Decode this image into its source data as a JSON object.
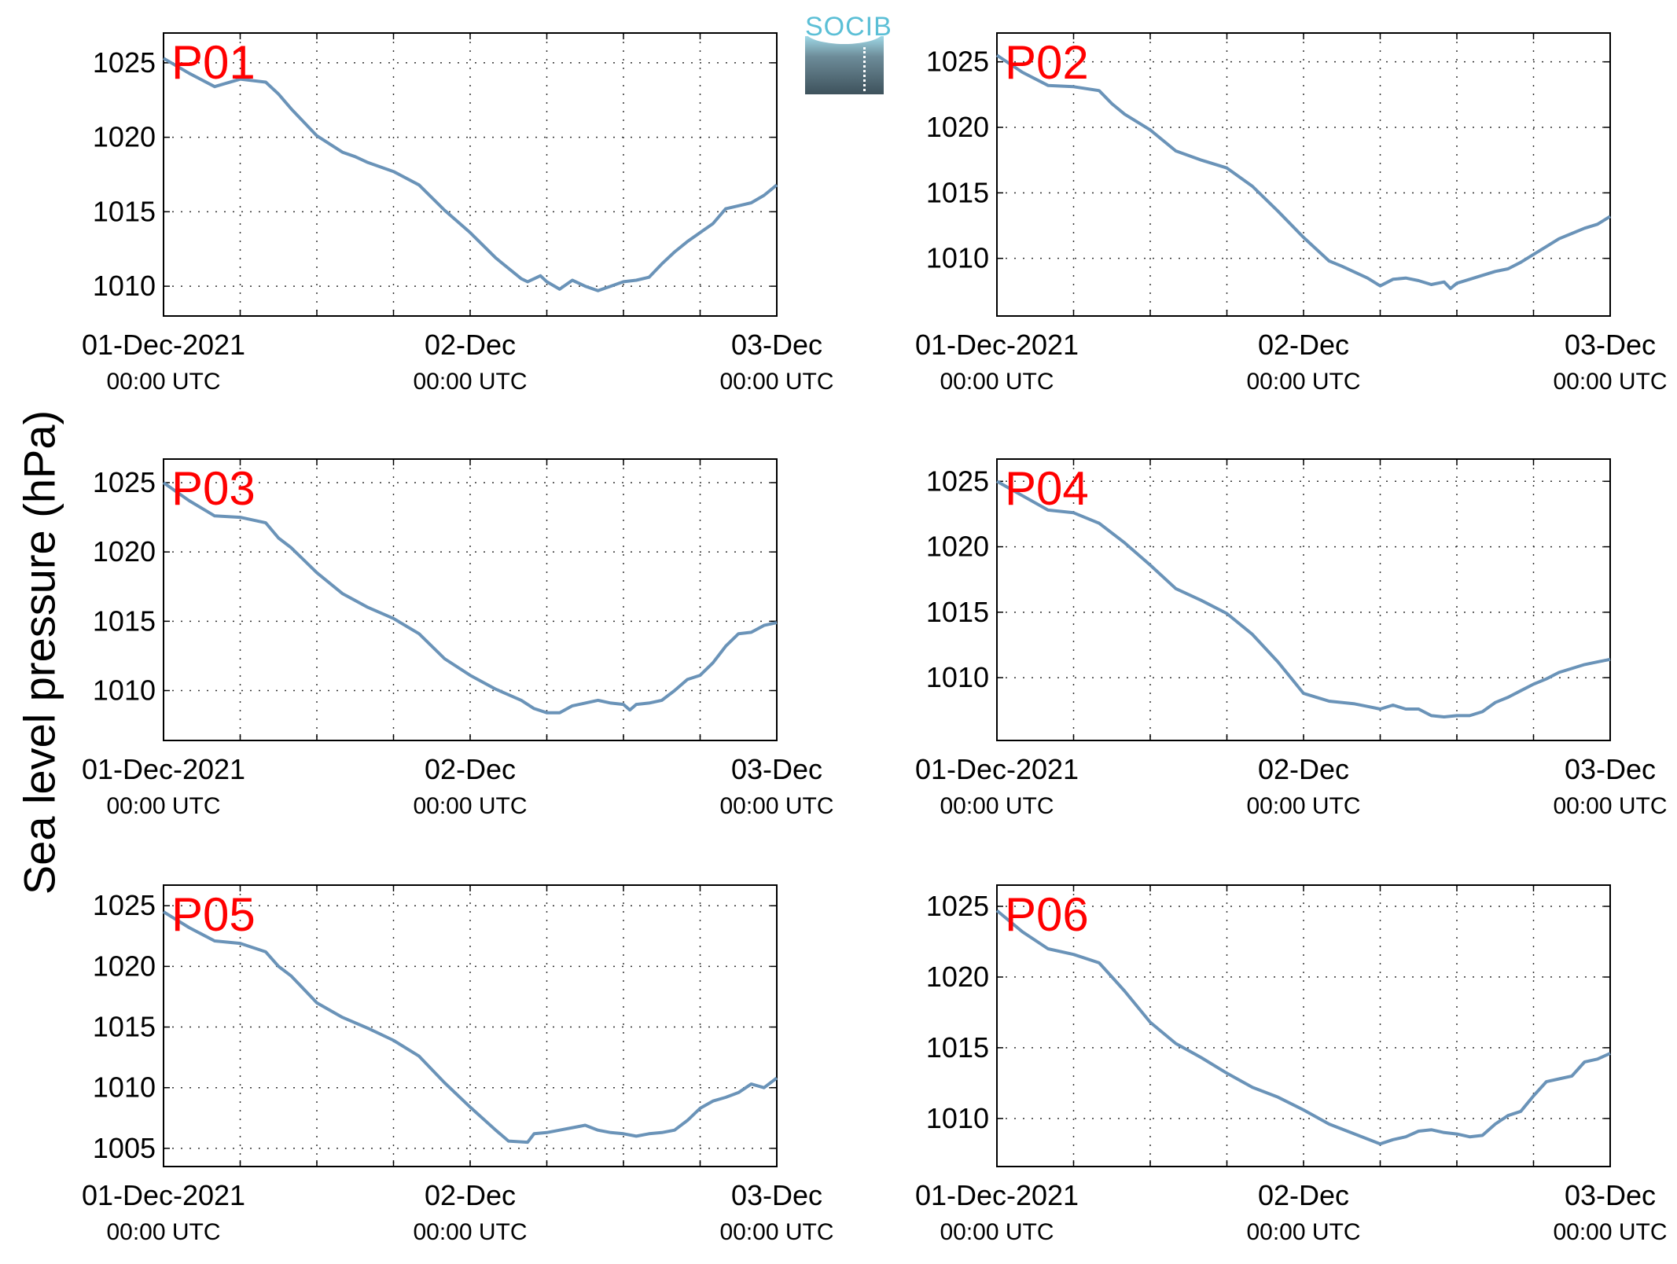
{
  "figure": {
    "ylabel": "Sea level pressure (hPa)",
    "logo_text": "SOCIB",
    "line_color": "#6a93b8",
    "label_color": "#ff0000"
  },
  "chart_data": [
    {
      "type": "line",
      "title": "",
      "label": "P01",
      "ylabel": "Sea level pressure (hPa)",
      "x_range_hours": [
        0,
        48
      ],
      "ylim": [
        1008,
        1027
      ],
      "yticks": [
        1010,
        1015,
        1020,
        1025
      ],
      "xticks": [
        {
          "hour": 0,
          "label": "01-Dec-2021",
          "sublabel": "00:00 UTC"
        },
        {
          "hour": 24,
          "label": "02-Dec",
          "sublabel": "00:00 UTC"
        },
        {
          "hour": 48,
          "label": "03-Dec",
          "sublabel": "00:00 UTC"
        }
      ],
      "grid": true,
      "series": [
        {
          "x": [
            0,
            2,
            4,
            6,
            8,
            9,
            10,
            12,
            14,
            15,
            16,
            18,
            20,
            22,
            24,
            26,
            28,
            28.5,
            29.5,
            30,
            31,
            32,
            33,
            34,
            35,
            36,
            37,
            38,
            39,
            40,
            41,
            42,
            43,
            44,
            45,
            46,
            47,
            48
          ],
          "y": [
            1025.3,
            1024.3,
            1023.4,
            1023.9,
            1023.7,
            1022.9,
            1021.9,
            1020.1,
            1019.0,
            1018.7,
            1018.3,
            1017.7,
            1016.8,
            1015.1,
            1013.6,
            1011.9,
            1010.5,
            1010.3,
            1010.7,
            1010.3,
            1009.8,
            1010.4,
            1010.0,
            1009.7,
            1010.0,
            1010.3,
            1010.4,
            1010.6,
            1011.5,
            1012.3,
            1013.0,
            1013.6,
            1014.2,
            1015.2,
            1015.4,
            1015.6,
            1016.1,
            1016.8
          ]
        }
      ]
    },
    {
      "type": "line",
      "title": "",
      "label": "P02",
      "ylabel": "Sea level pressure (hPa)",
      "x_range_hours": [
        0,
        48
      ],
      "ylim": [
        1005.6,
        1027.2
      ],
      "yticks": [
        1010,
        1015,
        1020,
        1025
      ],
      "xticks": [
        {
          "hour": 0,
          "label": "01-Dec-2021",
          "sublabel": "00:00 UTC"
        },
        {
          "hour": 24,
          "label": "02-Dec",
          "sublabel": "00:00 UTC"
        },
        {
          "hour": 48,
          "label": "03-Dec",
          "sublabel": "00:00 UTC"
        }
      ],
      "grid": true,
      "series": [
        {
          "x": [
            0,
            2,
            4,
            6,
            8,
            9,
            10,
            12,
            14,
            16,
            18,
            20,
            22,
            24,
            26,
            27,
            29,
            30,
            31,
            32,
            33,
            34,
            35,
            35.5,
            36,
            37,
            38,
            39,
            40,
            41,
            42,
            43,
            44,
            45,
            46,
            47,
            48
          ],
          "y": [
            1025.5,
            1024.2,
            1023.2,
            1023.1,
            1022.8,
            1021.8,
            1021.0,
            1019.8,
            1018.2,
            1017.5,
            1016.9,
            1015.5,
            1013.6,
            1011.6,
            1009.8,
            1009.4,
            1008.5,
            1007.9,
            1008.4,
            1008.5,
            1008.3,
            1008.0,
            1008.2,
            1007.7,
            1008.1,
            1008.4,
            1008.7,
            1009.0,
            1009.2,
            1009.7,
            1010.3,
            1010.9,
            1011.5,
            1011.9,
            1012.3,
            1012.6,
            1013.2
          ]
        }
      ]
    },
    {
      "type": "line",
      "title": "",
      "label": "P03",
      "ylabel": "Sea level pressure (hPa)",
      "x_range_hours": [
        0,
        48
      ],
      "ylim": [
        1006.4,
        1026.7
      ],
      "yticks": [
        1010,
        1015,
        1020,
        1025
      ],
      "xticks": [
        {
          "hour": 0,
          "label": "01-Dec-2021",
          "sublabel": "00:00 UTC"
        },
        {
          "hour": 24,
          "label": "02-Dec",
          "sublabel": "00:00 UTC"
        },
        {
          "hour": 48,
          "label": "03-Dec",
          "sublabel": "00:00 UTC"
        }
      ],
      "grid": true,
      "series": [
        {
          "x": [
            0,
            2,
            4,
            6,
            8,
            9,
            10,
            12,
            14,
            16,
            18,
            20,
            22,
            24,
            26,
            28,
            29,
            30,
            31,
            32,
            33,
            34,
            35,
            36,
            36.5,
            37,
            38,
            39,
            40,
            41,
            42,
            43,
            44,
            45,
            46,
            47,
            48
          ],
          "y": [
            1025.0,
            1023.7,
            1022.6,
            1022.5,
            1022.1,
            1021.0,
            1020.3,
            1018.5,
            1017.0,
            1016.0,
            1015.2,
            1014.1,
            1012.3,
            1011.1,
            1010.1,
            1009.3,
            1008.7,
            1008.4,
            1008.4,
            1008.9,
            1009.1,
            1009.3,
            1009.1,
            1009.0,
            1008.6,
            1009.0,
            1009.1,
            1009.3,
            1010.0,
            1010.8,
            1011.1,
            1012.0,
            1013.2,
            1014.1,
            1014.2,
            1014.7,
            1014.9
          ]
        }
      ]
    },
    {
      "type": "line",
      "title": "",
      "label": "P04",
      "ylabel": "Sea level pressure (hPa)",
      "x_range_hours": [
        0,
        48
      ],
      "ylim": [
        1005.2,
        1026.7
      ],
      "yticks": [
        1010,
        1015,
        1020,
        1025
      ],
      "xticks": [
        {
          "hour": 0,
          "label": "01-Dec-2021",
          "sublabel": "00:00 UTC"
        },
        {
          "hour": 24,
          "label": "02-Dec",
          "sublabel": "00:00 UTC"
        },
        {
          "hour": 48,
          "label": "03-Dec",
          "sublabel": "00:00 UTC"
        }
      ],
      "grid": true,
      "series": [
        {
          "x": [
            0,
            2,
            4,
            6,
            8,
            10,
            12,
            14,
            16,
            18,
            20,
            22,
            24,
            26,
            28,
            29,
            30,
            31,
            32,
            33,
            34,
            35,
            36,
            37,
            38,
            39,
            40,
            41,
            42,
            43,
            44,
            45,
            46,
            47,
            48
          ],
          "y": [
            1025.0,
            1023.9,
            1022.8,
            1022.6,
            1021.8,
            1020.3,
            1018.6,
            1016.8,
            1015.9,
            1014.9,
            1013.3,
            1011.2,
            1008.8,
            1008.2,
            1008.0,
            1007.8,
            1007.6,
            1007.9,
            1007.6,
            1007.6,
            1007.1,
            1007.0,
            1007.1,
            1007.1,
            1007.4,
            1008.1,
            1008.5,
            1009.0,
            1009.5,
            1009.9,
            1010.4,
            1010.7,
            1011.0,
            1011.2,
            1011.4
          ]
        }
      ]
    },
    {
      "type": "line",
      "title": "",
      "label": "P05",
      "ylabel": "Sea level pressure (hPa)",
      "x_range_hours": [
        0,
        48
      ],
      "ylim": [
        1003.5,
        1026.7
      ],
      "yticks": [
        1005,
        1010,
        1015,
        1020,
        1025
      ],
      "xticks": [
        {
          "hour": 0,
          "label": "01-Dec-2021",
          "sublabel": "00:00 UTC"
        },
        {
          "hour": 24,
          "label": "02-Dec",
          "sublabel": "00:00 UTC"
        },
        {
          "hour": 48,
          "label": "03-Dec",
          "sublabel": "00:00 UTC"
        }
      ],
      "grid": true,
      "series": [
        {
          "x": [
            0,
            2,
            4,
            6,
            8,
            9,
            10,
            12,
            14,
            16,
            18,
            20,
            22,
            24,
            26,
            27,
            28.5,
            29,
            30,
            31,
            32,
            33,
            34,
            35,
            36,
            37,
            38,
            39,
            40,
            41,
            42,
            43,
            44,
            45,
            46,
            47,
            48
          ],
          "y": [
            1024.5,
            1023.2,
            1022.1,
            1021.9,
            1021.2,
            1020.0,
            1019.2,
            1017.0,
            1015.8,
            1014.9,
            1013.9,
            1012.6,
            1010.4,
            1008.4,
            1006.5,
            1005.6,
            1005.5,
            1006.2,
            1006.3,
            1006.5,
            1006.7,
            1006.9,
            1006.5,
            1006.3,
            1006.2,
            1006.0,
            1006.2,
            1006.3,
            1006.5,
            1007.3,
            1008.3,
            1008.9,
            1009.2,
            1009.6,
            1010.3,
            1010.0,
            1010.8
          ]
        }
      ]
    },
    {
      "type": "line",
      "title": "",
      "label": "P06",
      "ylabel": "Sea level pressure (hPa)",
      "x_range_hours": [
        0,
        48
      ],
      "ylim": [
        1006.6,
        1026.5
      ],
      "yticks": [
        1010,
        1015,
        1020,
        1025
      ],
      "xticks": [
        {
          "hour": 0,
          "label": "01-Dec-2021",
          "sublabel": "00:00 UTC"
        },
        {
          "hour": 24,
          "label": "02-Dec",
          "sublabel": "00:00 UTC"
        },
        {
          "hour": 48,
          "label": "03-Dec",
          "sublabel": "00:00 UTC"
        }
      ],
      "grid": true,
      "series": [
        {
          "x": [
            0,
            2,
            4,
            6,
            8,
            9,
            10,
            12,
            14,
            16,
            18,
            20,
            22,
            24,
            26,
            28,
            30,
            31,
            32,
            33,
            34,
            35,
            36,
            37,
            38,
            39,
            40,
            41,
            42,
            43,
            44,
            45,
            46,
            47,
            48
          ],
          "y": [
            1024.7,
            1023.2,
            1022.0,
            1021.6,
            1021.0,
            1020.0,
            1019.0,
            1016.8,
            1015.3,
            1014.3,
            1013.2,
            1012.2,
            1011.5,
            1010.6,
            1009.6,
            1008.9,
            1008.2,
            1008.5,
            1008.7,
            1009.1,
            1009.2,
            1009.0,
            1008.9,
            1008.7,
            1008.8,
            1009.6,
            1010.2,
            1010.5,
            1011.6,
            1012.6,
            1012.8,
            1013.0,
            1014.0,
            1014.2,
            1014.6
          ]
        }
      ]
    }
  ]
}
